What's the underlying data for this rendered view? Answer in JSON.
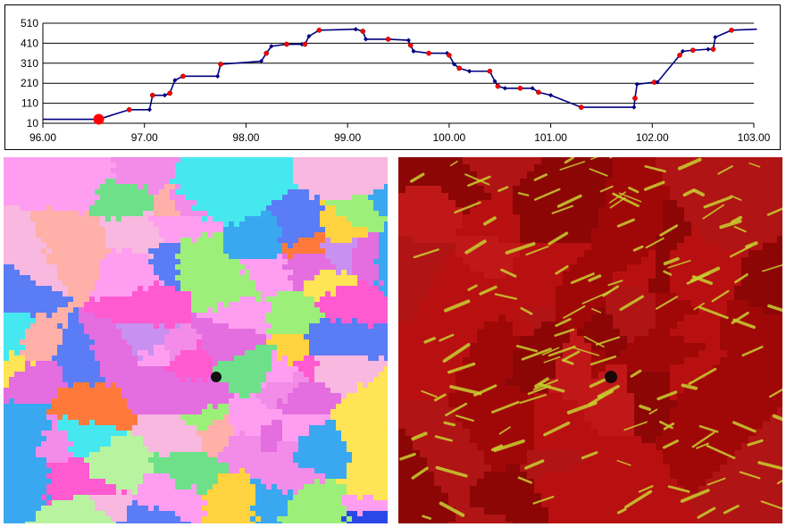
{
  "chart_data": {
    "type": "line",
    "xlabel": "",
    "ylabel": "",
    "xlim": [
      96,
      103
    ],
    "ylim": [
      10,
      510
    ],
    "x_ticks": [
      "96.00",
      "97.00",
      "98.00",
      "99.00",
      "100.00",
      "101.00",
      "102.00",
      "103.00"
    ],
    "y_ticks": [
      "10",
      "110",
      "210",
      "310",
      "410",
      "510"
    ],
    "grid": "horizontal",
    "legend": "none",
    "line_color": "#000080",
    "marker_color": "#000080",
    "highlight_color": "#ff0000",
    "series": [
      {
        "x": [
          96.0,
          96.55,
          96.85,
          97.05,
          97.08,
          97.2,
          97.25,
          97.3,
          97.38,
          97.72,
          97.75,
          98.15,
          98.2,
          98.25,
          98.4,
          98.55,
          98.58,
          98.62,
          98.72,
          99.08,
          99.15,
          99.18,
          99.4,
          99.6,
          99.62,
          99.65,
          99.8,
          99.98,
          100.0,
          100.05,
          100.1,
          100.2,
          100.4,
          100.45,
          100.48,
          100.55,
          100.7,
          100.82,
          100.88,
          101.0,
          101.3,
          101.82,
          101.83,
          101.85,
          102.02,
          102.05,
          102.27,
          102.3,
          102.4,
          102.55,
          102.6,
          102.62,
          102.78,
          103.03
        ],
        "y": [
          30,
          30,
          78,
          78,
          150,
          150,
          160,
          225,
          245,
          245,
          305,
          320,
          360,
          395,
          405,
          405,
          405,
          445,
          475,
          480,
          470,
          430,
          430,
          425,
          400,
          370,
          360,
          360,
          350,
          305,
          285,
          270,
          270,
          220,
          195,
          185,
          185,
          185,
          165,
          150,
          90,
          90,
          135,
          205,
          215,
          215,
          350,
          370,
          375,
          380,
          380,
          440,
          475,
          480
        ]
      }
    ],
    "highlighted_points": [
      [
        96.55,
        30
      ]
    ]
  },
  "maps": {
    "ipf_map": {
      "palette": [
        "#ff9ef0",
        "#f28ce8",
        "#e46ee0",
        "#ffe455",
        "#ffd23f",
        "#9cf07a",
        "#6ee08a",
        "#3aa8f0",
        "#5a7cf4",
        "#2a48e8",
        "#ff5ad0",
        "#ff7a3a",
        "#46e8f0",
        "#b8f4a0",
        "#f8b8e0",
        "#ffb0a8",
        "#c890f0"
      ]
    },
    "phase_map": {
      "palette": [
        "#b81010",
        "#a00808",
        "#c01818",
        "#8c0606",
        "#b01414"
      ],
      "secondary_color": "#c8d030",
      "dark_spot_color": "#1a0606"
    }
  }
}
